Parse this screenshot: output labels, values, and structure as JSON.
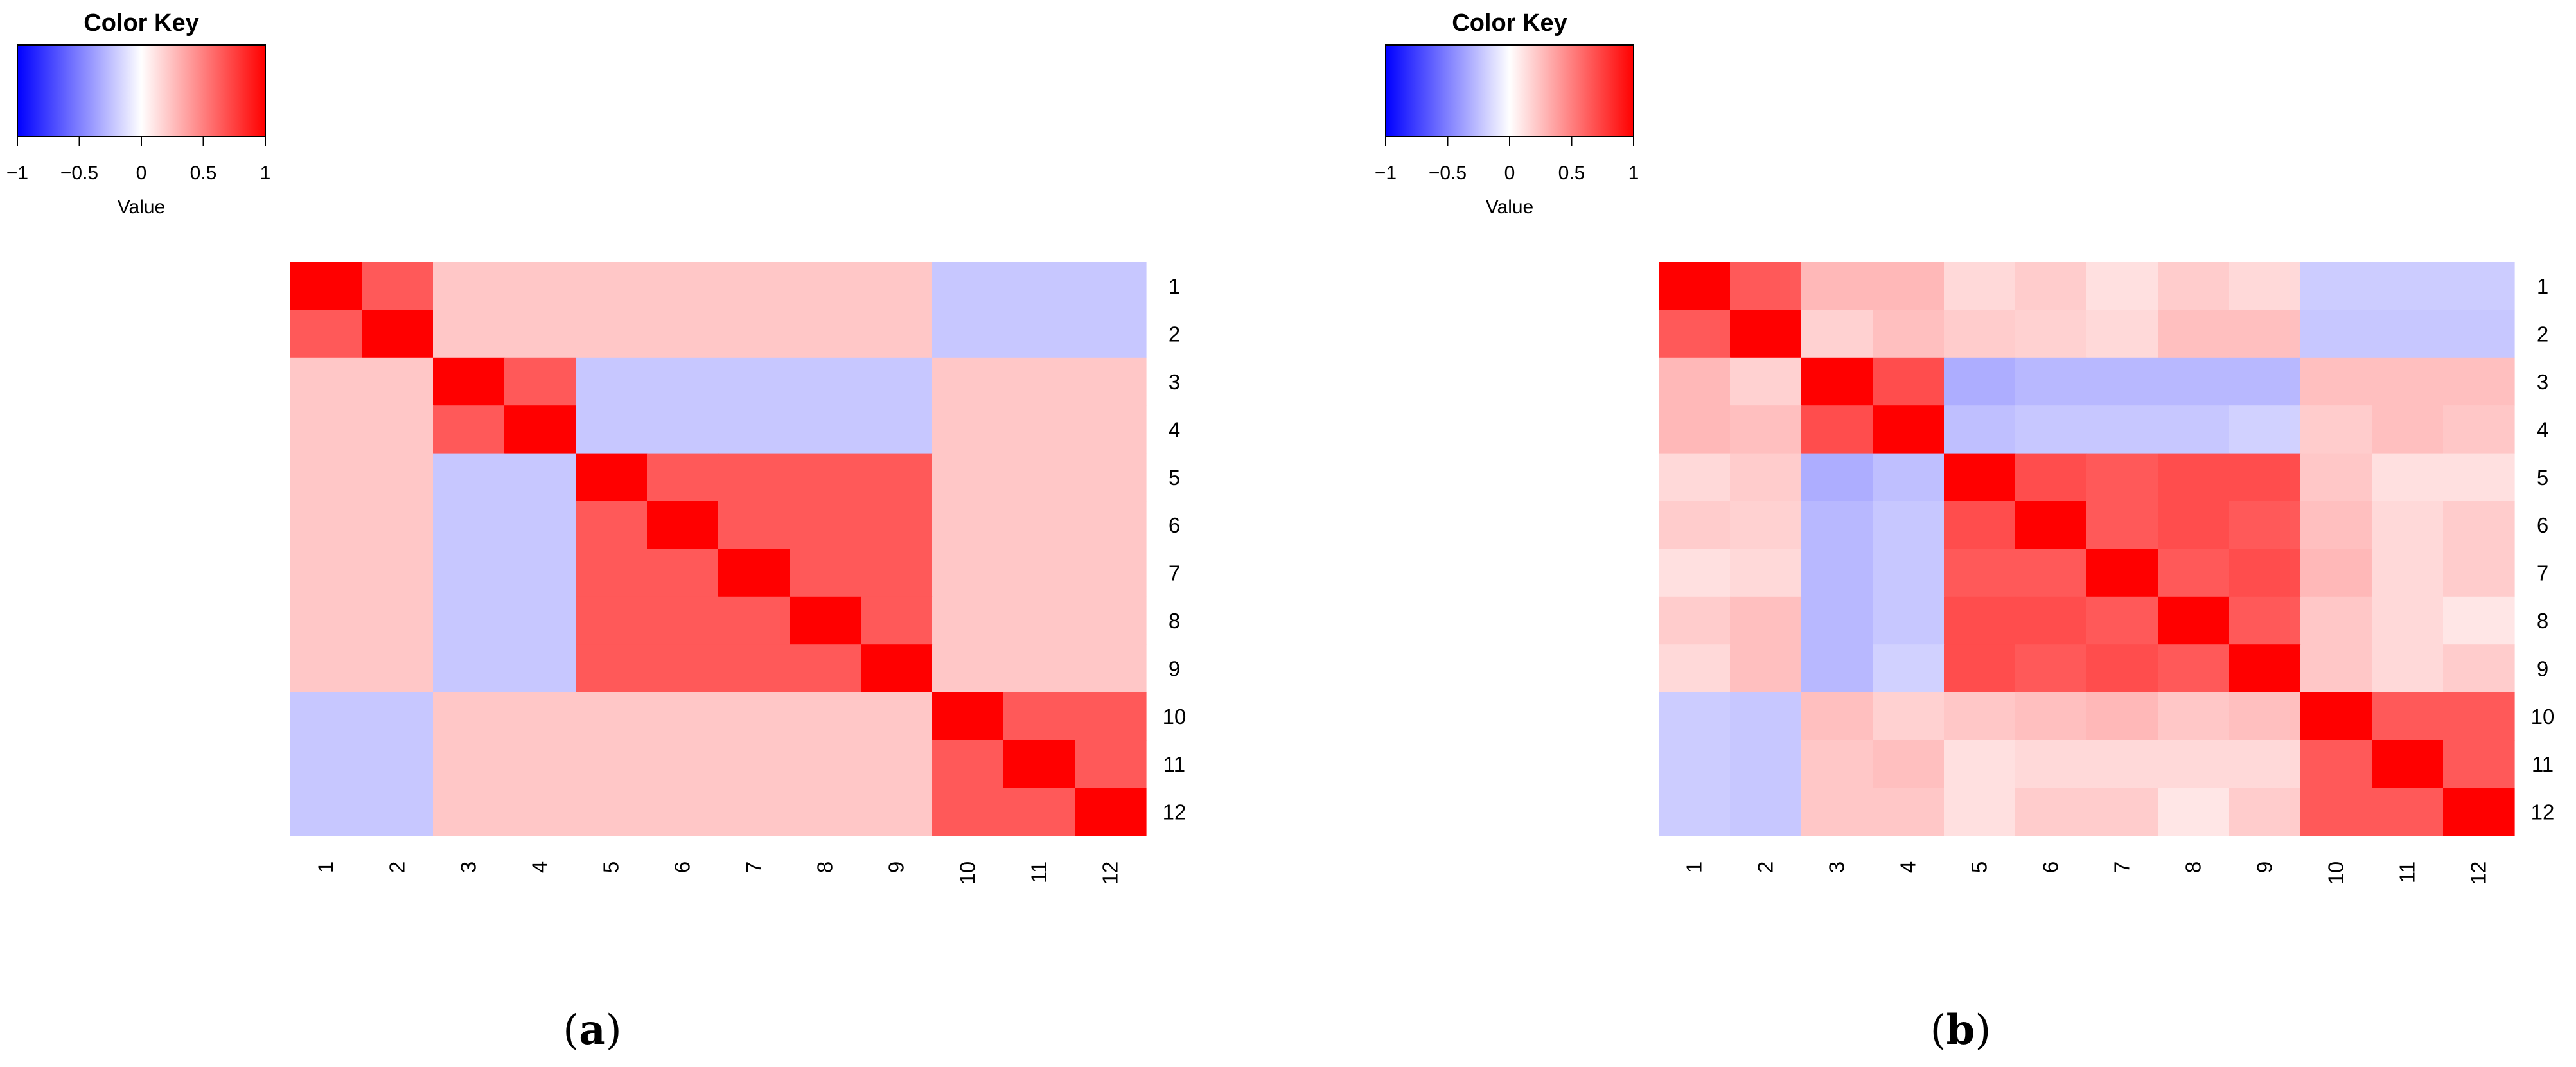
{
  "chart_data": [
    {
      "type": "heatmap",
      "panel_label": {
        "open": "(",
        "letter": "a",
        "close": ")"
      },
      "color_key": {
        "title": "Color Key",
        "xlabel": "Value",
        "range": [
          -1,
          1
        ],
        "colors": {
          "low": "#0000ff",
          "mid": "#ffffff",
          "high": "#ff0000"
        },
        "tick_labels": [
          "−1",
          "−0.5",
          "0",
          "0.5",
          "1"
        ],
        "tick_values": [
          -1,
          -0.5,
          0,
          0.5,
          1
        ]
      },
      "row_labels": [
        "1",
        "2",
        "3",
        "4",
        "5",
        "6",
        "7",
        "8",
        "9",
        "10",
        "11",
        "12"
      ],
      "col_labels": [
        "1",
        "2",
        "3",
        "4",
        "5",
        "6",
        "7",
        "8",
        "9",
        "10",
        "11",
        "12"
      ],
      "values": [
        [
          1.0,
          0.65,
          0.22,
          0.22,
          0.22,
          0.22,
          0.22,
          0.22,
          0.22,
          -0.22,
          -0.22,
          -0.22
        ],
        [
          0.65,
          1.0,
          0.22,
          0.22,
          0.22,
          0.22,
          0.22,
          0.22,
          0.22,
          -0.22,
          -0.22,
          -0.22
        ],
        [
          0.22,
          0.22,
          1.0,
          0.65,
          -0.22,
          -0.22,
          -0.22,
          -0.22,
          -0.22,
          0.22,
          0.22,
          0.22
        ],
        [
          0.22,
          0.22,
          0.65,
          1.0,
          -0.22,
          -0.22,
          -0.22,
          -0.22,
          -0.22,
          0.22,
          0.22,
          0.22
        ],
        [
          0.22,
          0.22,
          -0.22,
          -0.22,
          1.0,
          0.65,
          0.65,
          0.65,
          0.65,
          0.22,
          0.22,
          0.22
        ],
        [
          0.22,
          0.22,
          -0.22,
          -0.22,
          0.65,
          1.0,
          0.65,
          0.65,
          0.65,
          0.22,
          0.22,
          0.22
        ],
        [
          0.22,
          0.22,
          -0.22,
          -0.22,
          0.65,
          0.65,
          1.0,
          0.65,
          0.65,
          0.22,
          0.22,
          0.22
        ],
        [
          0.22,
          0.22,
          -0.22,
          -0.22,
          0.65,
          0.65,
          0.65,
          1.0,
          0.65,
          0.22,
          0.22,
          0.22
        ],
        [
          0.22,
          0.22,
          -0.22,
          -0.22,
          0.65,
          0.65,
          0.65,
          0.65,
          1.0,
          0.22,
          0.22,
          0.22
        ],
        [
          -0.22,
          -0.22,
          0.22,
          0.22,
          0.22,
          0.22,
          0.22,
          0.22,
          0.22,
          1.0,
          0.65,
          0.65
        ],
        [
          -0.22,
          -0.22,
          0.22,
          0.22,
          0.22,
          0.22,
          0.22,
          0.22,
          0.22,
          0.65,
          1.0,
          0.65
        ],
        [
          -0.22,
          -0.22,
          0.22,
          0.22,
          0.22,
          0.22,
          0.22,
          0.22,
          0.22,
          0.65,
          0.65,
          1.0
        ]
      ]
    },
    {
      "type": "heatmap",
      "panel_label": {
        "open": "(",
        "letter": "b",
        "close": ")"
      },
      "color_key": {
        "title": "Color Key",
        "xlabel": "Value",
        "range": [
          -1,
          1
        ],
        "colors": {
          "low": "#0000ff",
          "mid": "#ffffff",
          "high": "#ff0000"
        },
        "tick_labels": [
          "−1",
          "−0.5",
          "0",
          "0.5",
          "1"
        ],
        "tick_values": [
          -1,
          -0.5,
          0,
          0.5,
          1
        ]
      },
      "row_labels": [
        "1",
        "2",
        "3",
        "4",
        "5",
        "6",
        "7",
        "8",
        "9",
        "10",
        "11",
        "12"
      ],
      "col_labels": [
        "1",
        "2",
        "3",
        "4",
        "5",
        "6",
        "7",
        "8",
        "9",
        "10",
        "11",
        "12"
      ],
      "values": [
        [
          1.0,
          0.65,
          0.28,
          0.28,
          0.15,
          0.2,
          0.12,
          0.2,
          0.15,
          -0.2,
          -0.2,
          -0.2
        ],
        [
          0.65,
          1.0,
          0.18,
          0.25,
          0.2,
          0.18,
          0.15,
          0.25,
          0.25,
          -0.22,
          -0.22,
          -0.22
        ],
        [
          0.28,
          0.18,
          1.0,
          0.7,
          -0.32,
          -0.28,
          -0.28,
          -0.28,
          -0.28,
          0.25,
          0.25,
          0.25
        ],
        [
          0.28,
          0.25,
          0.7,
          1.0,
          -0.25,
          -0.22,
          -0.22,
          -0.22,
          -0.18,
          0.2,
          0.25,
          0.22
        ],
        [
          0.15,
          0.2,
          -0.32,
          -0.25,
          1.0,
          0.7,
          0.65,
          0.7,
          0.7,
          0.22,
          0.12,
          0.12
        ],
        [
          0.2,
          0.18,
          -0.28,
          -0.22,
          0.7,
          1.0,
          0.65,
          0.7,
          0.65,
          0.25,
          0.15,
          0.2
        ],
        [
          0.12,
          0.15,
          -0.28,
          -0.22,
          0.65,
          0.65,
          1.0,
          0.65,
          0.7,
          0.28,
          0.15,
          0.2
        ],
        [
          0.2,
          0.25,
          -0.28,
          -0.22,
          0.7,
          0.7,
          0.65,
          1.0,
          0.65,
          0.22,
          0.15,
          0.1
        ],
        [
          0.15,
          0.25,
          -0.28,
          -0.18,
          0.7,
          0.65,
          0.7,
          0.65,
          1.0,
          0.22,
          0.15,
          0.2
        ],
        [
          -0.2,
          -0.22,
          0.25,
          0.18,
          0.22,
          0.25,
          0.28,
          0.22,
          0.25,
          1.0,
          0.65,
          0.65
        ],
        [
          -0.2,
          -0.22,
          0.22,
          0.25,
          0.12,
          0.15,
          0.15,
          0.15,
          0.15,
          0.65,
          1.0,
          0.65
        ],
        [
          -0.2,
          -0.22,
          0.22,
          0.22,
          0.12,
          0.2,
          0.2,
          0.1,
          0.2,
          0.65,
          0.65,
          1.0
        ]
      ]
    }
  ]
}
